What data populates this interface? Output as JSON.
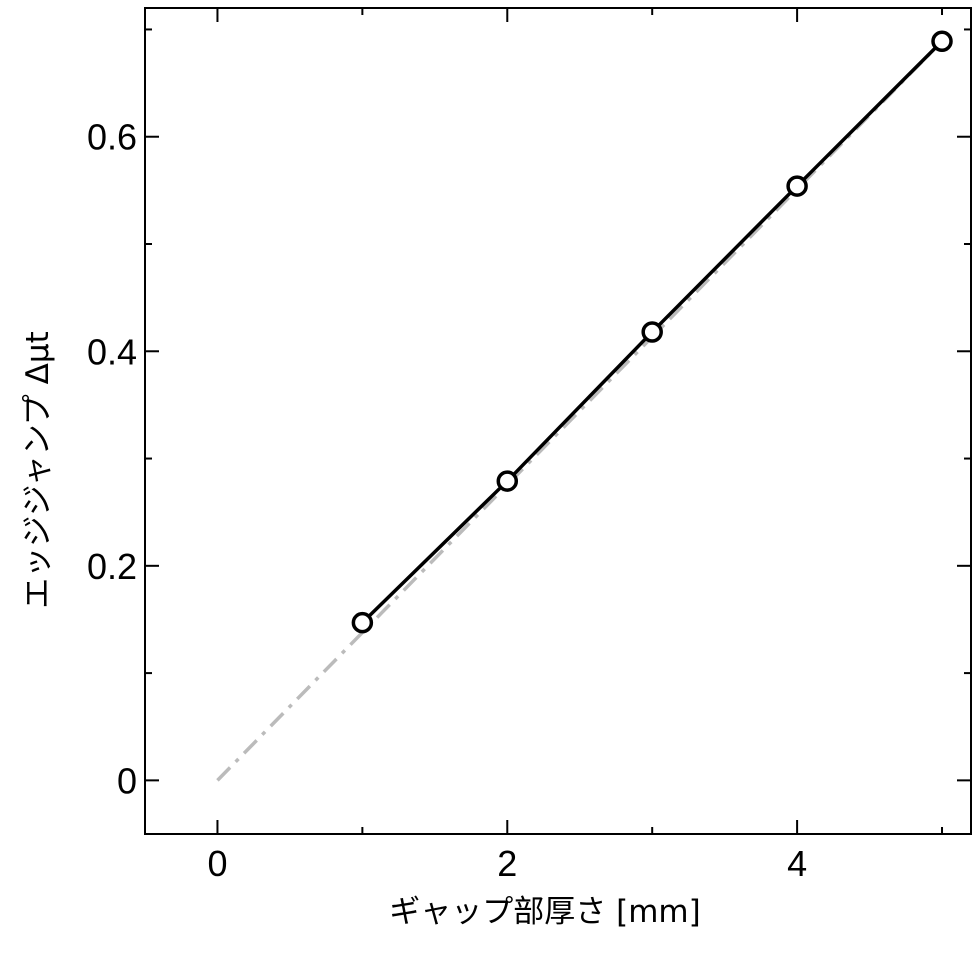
{
  "chart_data": {
    "type": "line",
    "xlabel": "ギャップ部厚さ [mm]",
    "ylabel": "エッジジャンプ Δμt",
    "xlim": [
      -0.5,
      5.2
    ],
    "ylim": [
      -0.05,
      0.72
    ],
    "x_ticks": [
      0,
      2,
      4
    ],
    "x_minor_ticks": [
      1,
      3,
      5
    ],
    "y_ticks": [
      0,
      0.2,
      0.4,
      0.6
    ],
    "y_tick_labels": [
      "0",
      "0.2",
      "0.4",
      "0.6"
    ],
    "y_minor_ticks": [
      0.1,
      0.3,
      0.5,
      0.7
    ],
    "grid": false,
    "series": [
      {
        "style": "solid-with-open-circles",
        "color": "#000000",
        "x": [
          1,
          2,
          3,
          4,
          5
        ],
        "y": [
          0.147,
          0.279,
          0.418,
          0.554,
          0.689
        ]
      },
      {
        "style": "dash-dot",
        "color": "#bbbbbb",
        "x": [
          0,
          5
        ],
        "y": [
          0.0,
          0.689
        ]
      }
    ]
  }
}
